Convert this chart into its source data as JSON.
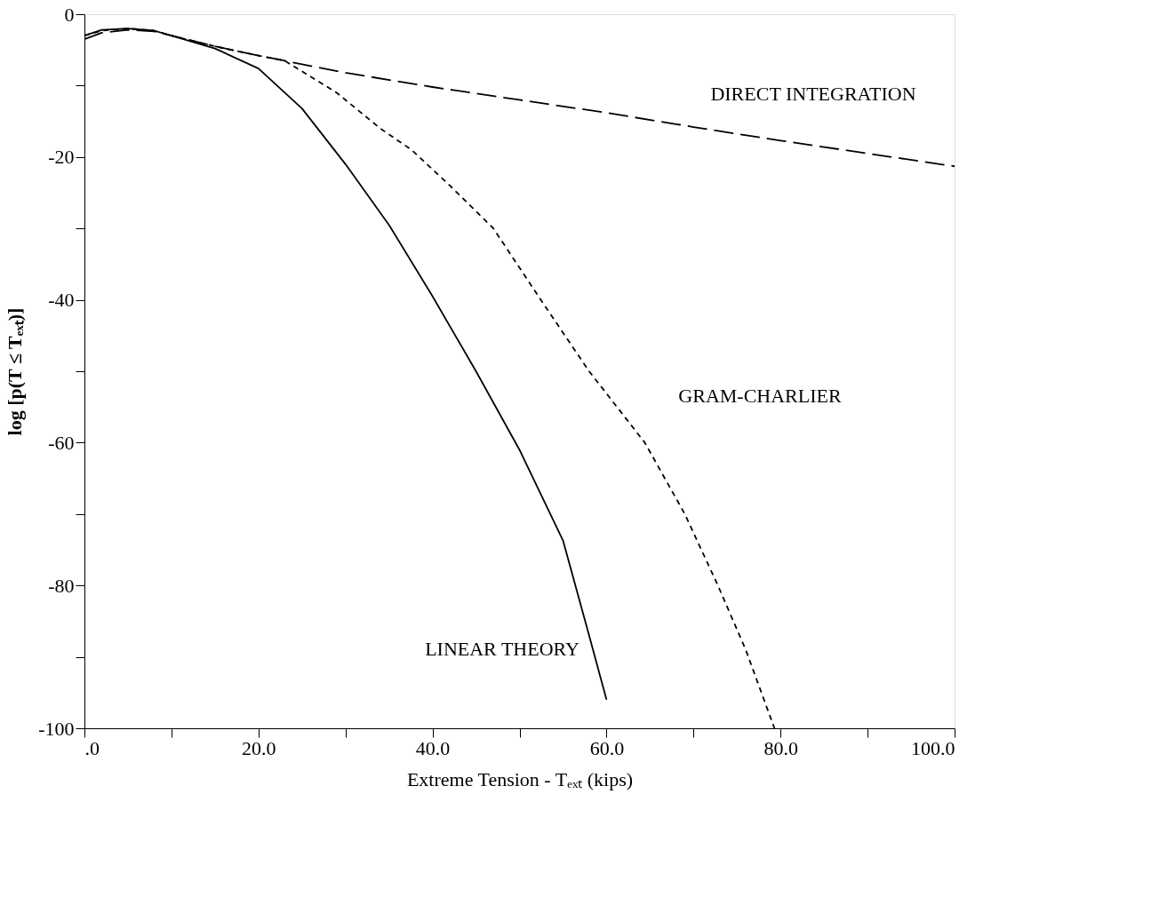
{
  "chart_data": {
    "type": "line",
    "xlabel": "Extreme Tension - Tₑₓₜ   (kips)",
    "ylabel": "log [p(T ≤ Tₑₓₜ)]",
    "xlim": [
      0,
      100
    ],
    "ylim": [
      -100,
      0
    ],
    "xticks": [
      {
        "value": 0,
        "label": ".0"
      },
      {
        "value": 10,
        "label": null
      },
      {
        "value": 20,
        "label": "20.0"
      },
      {
        "value": 30,
        "label": null
      },
      {
        "value": 40,
        "label": "40.0"
      },
      {
        "value": 50,
        "label": null
      },
      {
        "value": 60,
        "label": "60.0"
      },
      {
        "value": 70,
        "label": null
      },
      {
        "value": 80,
        "label": "80.0"
      },
      {
        "value": 90,
        "label": null
      },
      {
        "value": 100,
        "label": "100.0"
      }
    ],
    "yticks": [
      0,
      {
        "value": -10,
        "label": null
      },
      -20,
      {
        "value": -30,
        "label": null
      },
      -40,
      {
        "value": -50,
        "label": null
      },
      -60,
      {
        "value": -70,
        "label": null
      },
      -80,
      {
        "value": -90,
        "label": null
      },
      -100
    ],
    "grid": false,
    "legend": false,
    "marker": "none",
    "series": [
      {
        "name": "DIRECT INTEGRATION",
        "color": "#000000",
        "line_style": "dashed",
        "x": [
          0,
          2,
          5,
          8,
          10,
          15,
          20,
          30,
          40,
          50,
          60,
          70,
          80,
          90,
          100
        ],
        "values": [
          -3.5,
          -2.6,
          -2.2,
          -2.4,
          -3,
          -4.5,
          -5.8,
          -8.2,
          -10.2,
          -12,
          -13.8,
          -15.8,
          -17.7,
          -19.5,
          -21.3
        ]
      },
      {
        "name": "GRAM-CHARLIER",
        "color": "#000000",
        "line_style": "dotted",
        "x": [
          0,
          2,
          5,
          8,
          10,
          15,
          20,
          23,
          29,
          34,
          37.6,
          42,
          47,
          53,
          58,
          64.4,
          69,
          72.8,
          76,
          79.3
        ],
        "values": [
          -3,
          -2.3,
          -2,
          -2.3,
          -3,
          -4.5,
          -5.8,
          -6.5,
          -11,
          -16,
          -19,
          -24,
          -30,
          -41,
          -50,
          -60,
          -70,
          -80,
          -89,
          -100
        ]
      },
      {
        "name": "LINEAR THEORY",
        "color": "#000000",
        "line_style": "solid",
        "x": [
          0,
          2,
          5,
          8,
          10,
          15,
          20,
          25,
          30,
          35,
          40,
          45,
          50,
          55,
          58,
          60
        ],
        "values": [
          -3,
          -2.2,
          -2,
          -2.3,
          -3,
          -4.8,
          -7.6,
          -13.2,
          -21,
          -29.5,
          -39.5,
          -50,
          -61,
          -73.7,
          -87,
          -96
        ]
      }
    ]
  }
}
